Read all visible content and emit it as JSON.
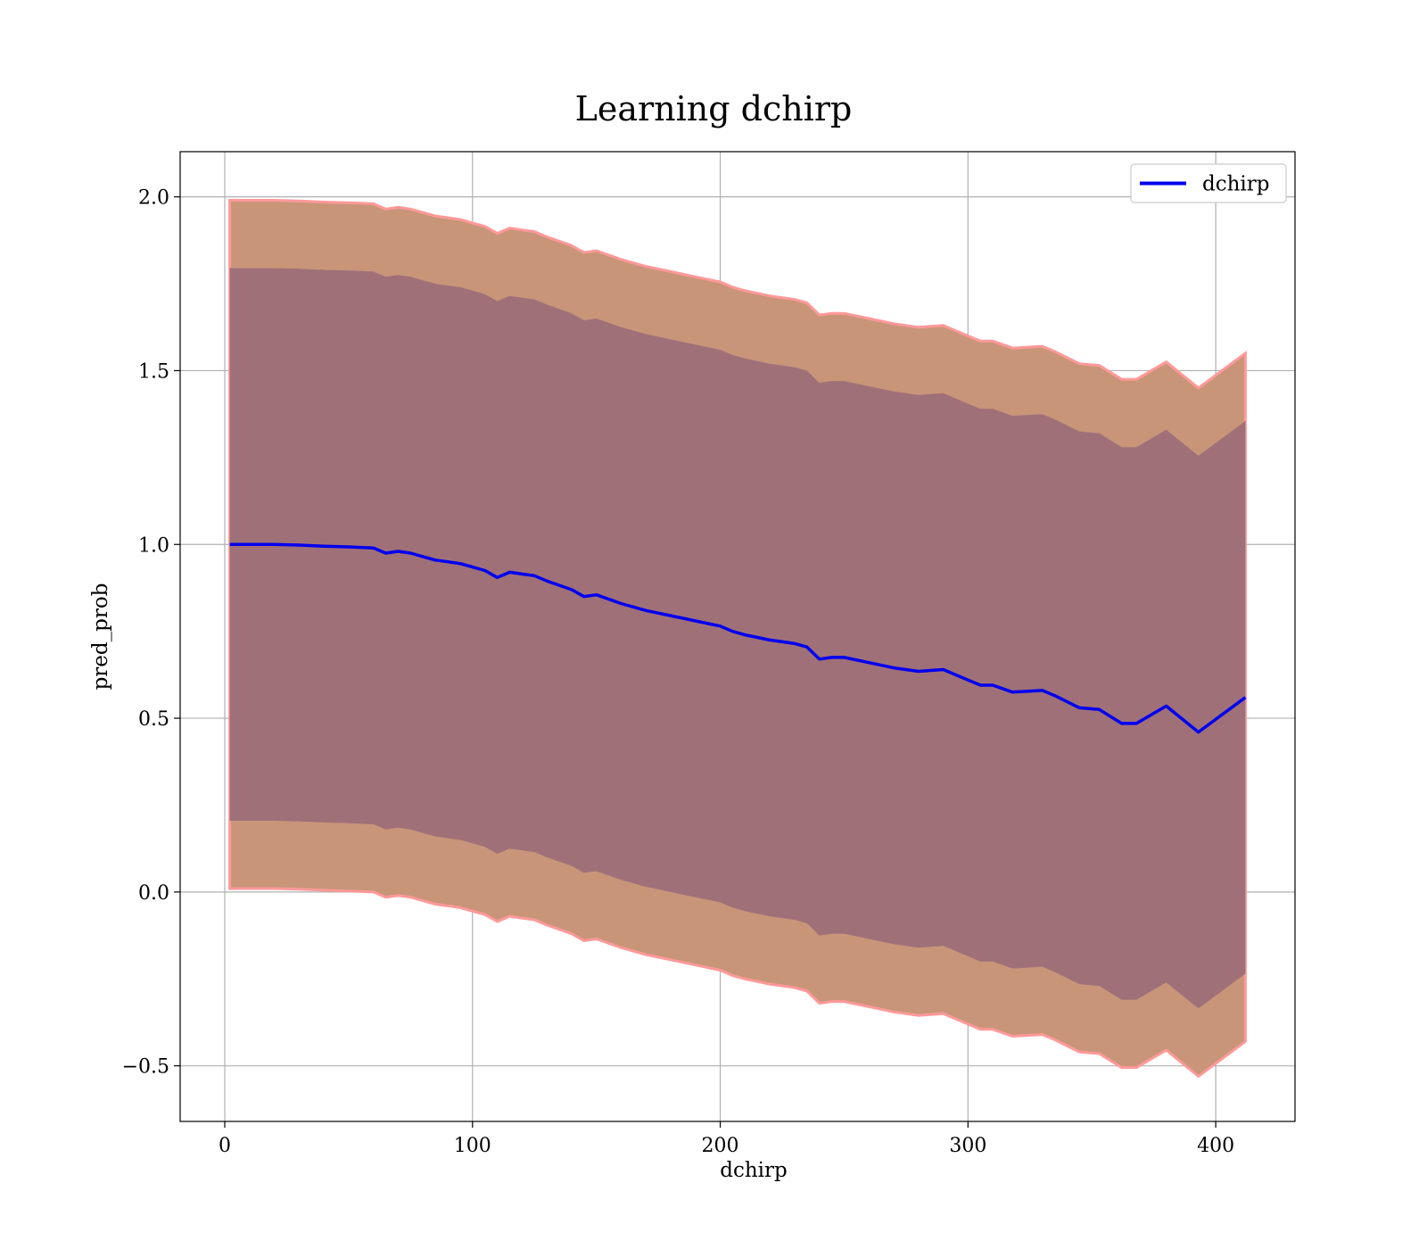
{
  "chart_data": {
    "type": "line",
    "title": "Learning dchirp",
    "xlabel": "dchirp",
    "ylabel": "pred_prob",
    "xlim": [
      -18,
      432
    ],
    "ylim": [
      -0.66,
      2.13
    ],
    "xticks": [
      0,
      100,
      200,
      300,
      400
    ],
    "yticks": [
      -0.5,
      0.0,
      0.5,
      1.0,
      1.5,
      2.0
    ],
    "xtick_labels": [
      "0",
      "100",
      "200",
      "300",
      "400"
    ],
    "ytick_labels": [
      "−0.5",
      "0.0",
      "0.5",
      "1.0",
      "1.5",
      "2.0"
    ],
    "grid": true,
    "legend": {
      "position": "top-right",
      "entries": [
        "dchirp"
      ]
    },
    "colors": {
      "line": "#0000ee",
      "inner_band": "#a07079",
      "outer_band": "#c89579",
      "outer_edge": "#ff9999"
    },
    "series": [
      {
        "name": "dchirp",
        "x": [
          2,
          10,
          20,
          30,
          40,
          50,
          60,
          65,
          70,
          75,
          80,
          85,
          90,
          95,
          100,
          105,
          110,
          115,
          120,
          125,
          130,
          140,
          145,
          150,
          160,
          170,
          180,
          190,
          200,
          205,
          210,
          220,
          230,
          235,
          240,
          245,
          250,
          260,
          270,
          280,
          290,
          300,
          305,
          310,
          318,
          330,
          335,
          345,
          353,
          362,
          368,
          380,
          393,
          412
        ],
        "y": [
          1.0,
          1.0,
          1.0,
          0.998,
          0.995,
          0.993,
          0.99,
          0.975,
          0.98,
          0.975,
          0.965,
          0.955,
          0.95,
          0.945,
          0.935,
          0.925,
          0.905,
          0.92,
          0.915,
          0.91,
          0.895,
          0.87,
          0.85,
          0.855,
          0.83,
          0.81,
          0.795,
          0.78,
          0.765,
          0.75,
          0.74,
          0.725,
          0.715,
          0.705,
          0.67,
          0.675,
          0.675,
          0.66,
          0.645,
          0.635,
          0.64,
          0.61,
          0.595,
          0.595,
          0.575,
          0.58,
          0.565,
          0.53,
          0.525,
          0.485,
          0.485,
          0.535,
          0.46,
          0.56
        ],
        "inner_band_halfwidth": 0.795,
        "outer_band_halfwidth": 0.99
      }
    ]
  }
}
